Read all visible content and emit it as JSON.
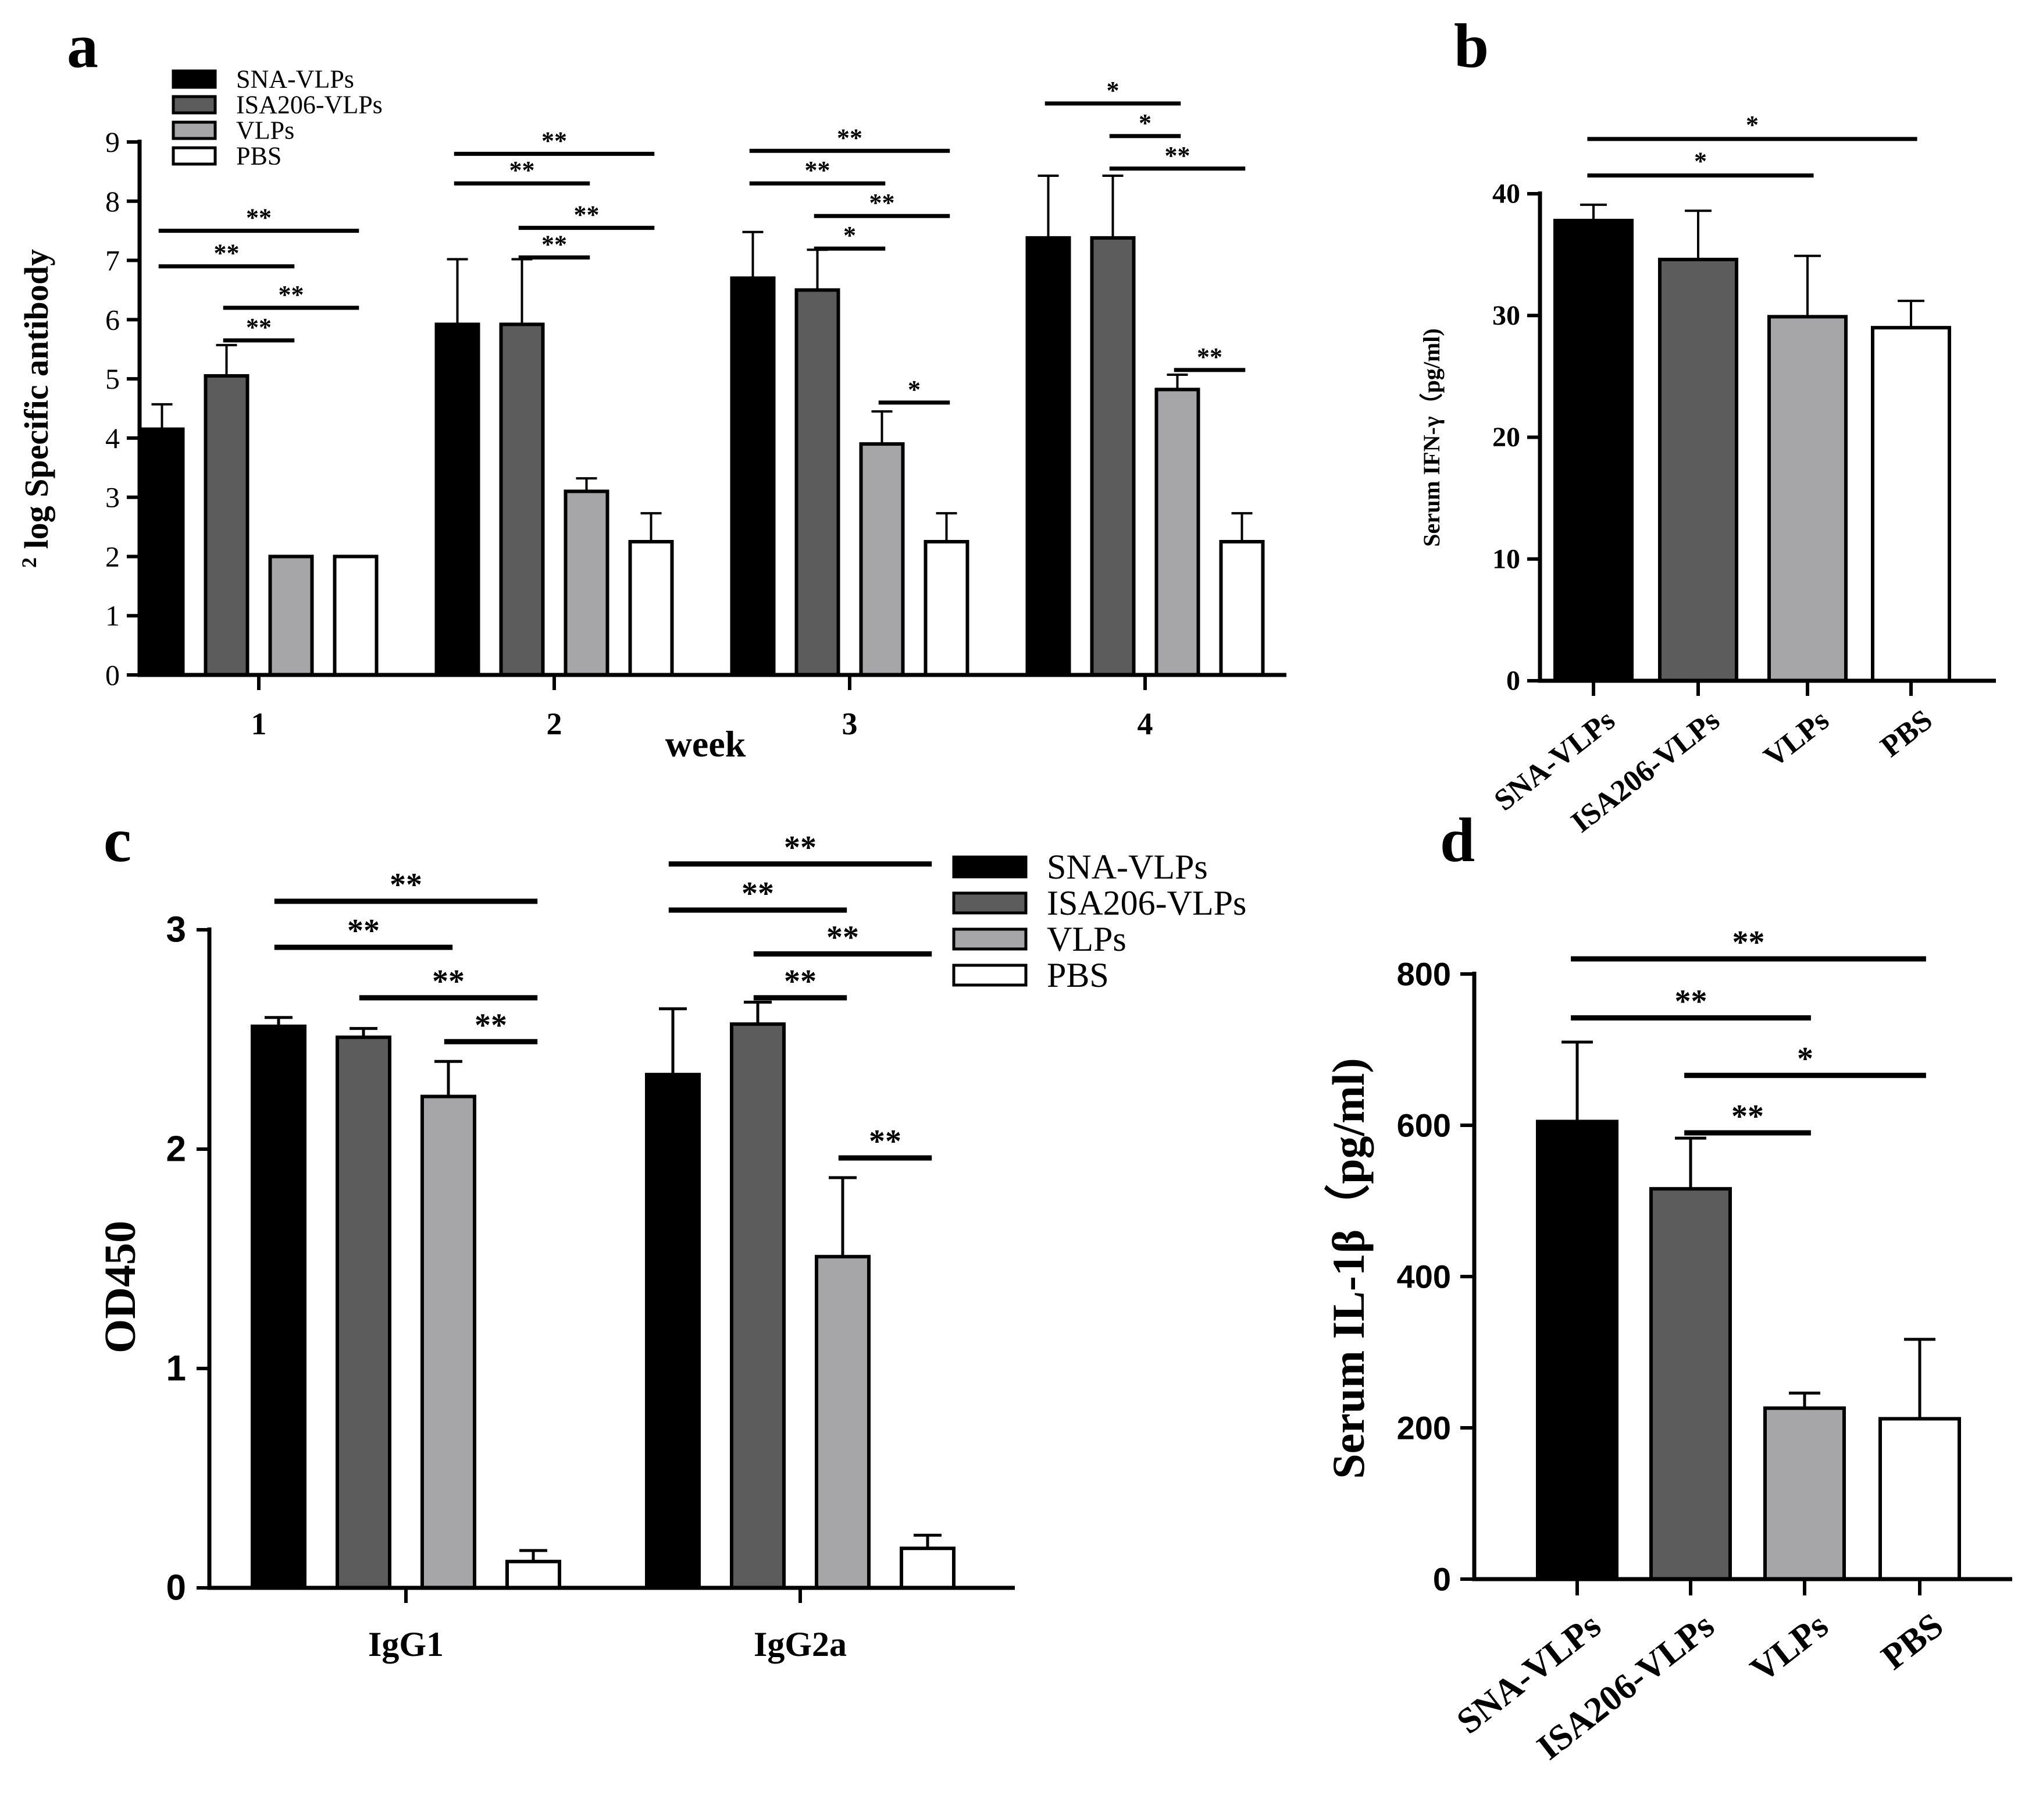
{
  "series_names": [
    "SNA-VLPs",
    "ISA206-VLPs",
    "VLPs",
    "PBS"
  ],
  "colors": {
    "SNA-VLPs": "#000000",
    "ISA206-VLPs": "#5c5c5c",
    "VLPs": "#a6a6a8",
    "PBS": "#ffffff"
  },
  "chart_data": [
    {
      "id": "a",
      "panel_label": "a",
      "type": "bar",
      "title": "",
      "xlabel": "week",
      "ylabel_sup": "2",
      "ylabel": "log Specific antibody",
      "ylim": [
        0,
        9
      ],
      "yticks": [
        "0",
        "1",
        "2",
        "3",
        "4",
        "5",
        "6",
        "7",
        "8",
        "9"
      ],
      "categories": [
        "1",
        "2",
        "3",
        "4"
      ],
      "legend": [
        "SNA-VLPs",
        "ISA206-VLPs",
        "VLPs",
        "PBS"
      ],
      "series": [
        {
          "name": "SNA-VLPs",
          "values": [
            4.15,
            5.92,
            6.7,
            7.38
          ],
          "errors": [
            0.42,
            1.1,
            0.78,
            1.05
          ]
        },
        {
          "name": "ISA206-VLPs",
          "values": [
            5.05,
            5.92,
            6.5,
            7.38
          ],
          "errors": [
            0.52,
            1.1,
            0.68,
            1.05
          ]
        },
        {
          "name": "VLPs",
          "values": [
            2.0,
            3.1,
            3.9,
            4.82
          ],
          "errors": [
            0,
            0.22,
            0.55,
            0.25
          ]
        },
        {
          "name": "PBS",
          "values": [
            2.0,
            2.25,
            2.25,
            2.25
          ],
          "errors": [
            0,
            0.48,
            0.48,
            0.48
          ]
        }
      ],
      "significance": [
        {
          "group": 0,
          "from": 0,
          "to": 3,
          "y": 7.5,
          "label": "**"
        },
        {
          "group": 0,
          "from": 0,
          "to": 2,
          "y": 6.9,
          "label": "**"
        },
        {
          "group": 0,
          "from": 1,
          "to": 3,
          "y": 6.2,
          "label": "**"
        },
        {
          "group": 0,
          "from": 1,
          "to": 2,
          "y": 5.65,
          "label": "**"
        },
        {
          "group": 1,
          "from": 0,
          "to": 3,
          "y": 8.8,
          "label": "**"
        },
        {
          "group": 1,
          "from": 0,
          "to": 2,
          "y": 8.3,
          "label": "**"
        },
        {
          "group": 1,
          "from": 1,
          "to": 3,
          "y": 7.55,
          "label": "**"
        },
        {
          "group": 1,
          "from": 1,
          "to": 2,
          "y": 7.05,
          "label": "**"
        },
        {
          "group": 2,
          "from": 0,
          "to": 3,
          "y": 8.85,
          "label": "**"
        },
        {
          "group": 2,
          "from": 0,
          "to": 2,
          "y": 8.3,
          "label": "**"
        },
        {
          "group": 2,
          "from": 1,
          "to": 3,
          "y": 7.75,
          "label": "**"
        },
        {
          "group": 2,
          "from": 1,
          "to": 2,
          "y": 7.2,
          "label": "*"
        },
        {
          "group": 2,
          "from": 2,
          "to": 3,
          "y": 4.6,
          "label": "*"
        },
        {
          "group": 3,
          "from": 0,
          "to": 2,
          "y": 9.65,
          "label": "*"
        },
        {
          "group": 3,
          "from": 1,
          "to": 2,
          "y": 9.1,
          "label": "*"
        },
        {
          "group": 3,
          "from": 1,
          "to": 3,
          "y": 8.55,
          "label": "**"
        },
        {
          "group": 3,
          "from": 2,
          "to": 3,
          "y": 5.15,
          "label": "**"
        }
      ]
    },
    {
      "id": "b",
      "panel_label": "b",
      "type": "bar",
      "title": "",
      "xlabel": "",
      "ylabel": "Serum IFN-γ（pg/ml)",
      "ylim": [
        0,
        40
      ],
      "yticks": [
        "0",
        "10",
        "20",
        "30",
        "40"
      ],
      "categories": [
        "SNA-VLPs",
        "ISA206-VLPs",
        "VLPs",
        "PBS"
      ],
      "series": [
        {
          "name": "Serum IFN-γ",
          "values": [
            37.8,
            34.6,
            29.9,
            29.0
          ],
          "errors": [
            1.3,
            4.0,
            5.0,
            2.2
          ]
        }
      ],
      "significance": [
        {
          "from": 0,
          "to": 3,
          "y": 44.5,
          "label": "*"
        },
        {
          "from": 0,
          "to": 2,
          "y": 41.5,
          "label": "*"
        }
      ]
    },
    {
      "id": "c",
      "panel_label": "c",
      "type": "bar",
      "title": "",
      "xlabel": "",
      "ylabel": "OD450",
      "ylim": [
        0,
        3
      ],
      "yticks": [
        "0",
        "1",
        "2",
        "3"
      ],
      "categories": [
        "IgG1",
        "IgG2a"
      ],
      "legend": [
        "SNA-VLPs",
        "ISA206-VLPs",
        "VLPs",
        "PBS"
      ],
      "series": [
        {
          "name": "SNA-VLPs",
          "values": [
            2.56,
            2.34
          ],
          "errors": [
            0.04,
            0.3
          ]
        },
        {
          "name": "ISA206-VLPs",
          "values": [
            2.51,
            2.57
          ],
          "errors": [
            0.04,
            0.1
          ]
        },
        {
          "name": "VLPs",
          "values": [
            2.24,
            1.51
          ],
          "errors": [
            0.16,
            0.36
          ]
        },
        {
          "name": "PBS",
          "values": [
            0.12,
            0.18
          ],
          "errors": [
            0.05,
            0.06
          ]
        }
      ],
      "significance": [
        {
          "group": 0,
          "from": 0,
          "to": 3,
          "y": 3.13,
          "label": "**"
        },
        {
          "group": 0,
          "from": 0,
          "to": 2,
          "y": 2.92,
          "label": "**"
        },
        {
          "group": 0,
          "from": 1,
          "to": 3,
          "y": 2.69,
          "label": "**"
        },
        {
          "group": 0,
          "from": 2,
          "to": 3,
          "y": 2.49,
          "label": "**"
        },
        {
          "group": 1,
          "from": 0,
          "to": 3,
          "y": 3.3,
          "label": "**"
        },
        {
          "group": 1,
          "from": 0,
          "to": 2,
          "y": 3.09,
          "label": "**"
        },
        {
          "group": 1,
          "from": 1,
          "to": 3,
          "y": 2.89,
          "label": "**"
        },
        {
          "group": 1,
          "from": 1,
          "to": 2,
          "y": 2.69,
          "label": "**"
        },
        {
          "group": 1,
          "from": 2,
          "to": 3,
          "y": 1.96,
          "label": "**"
        }
      ]
    },
    {
      "id": "d",
      "panel_label": "d",
      "type": "bar",
      "title": "",
      "xlabel": "",
      "ylabel": "Serum IL-1β（pg/ml)",
      "ylim": [
        0,
        800
      ],
      "yticks": [
        "0",
        "200",
        "400",
        "600",
        "800"
      ],
      "categories": [
        "SNA-VLPs",
        "ISA206-VLPs",
        "VLPs",
        "PBS"
      ],
      "series": [
        {
          "name": "Serum IL-1β",
          "values": [
            605,
            516,
            226,
            212
          ],
          "errors": [
            105,
            67,
            20,
            105
          ]
        }
      ],
      "significance": [
        {
          "from": 0,
          "to": 3,
          "y": 820,
          "label": "**"
        },
        {
          "from": 0,
          "to": 2,
          "y": 742,
          "label": "**"
        },
        {
          "from": 1,
          "to": 3,
          "y": 666,
          "label": "*"
        },
        {
          "from": 1,
          "to": 2,
          "y": 590,
          "label": "**"
        }
      ]
    }
  ]
}
